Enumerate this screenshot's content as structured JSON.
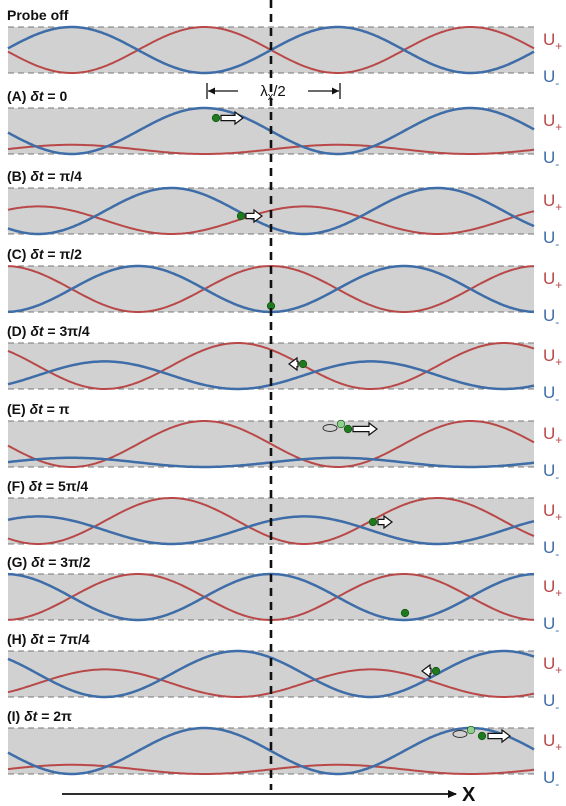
{
  "colors": {
    "u_plus": "#b94848",
    "u_minus": "#3e6da8",
    "band": "#d1d1d1",
    "atom": "#1f7a1f",
    "atom_ghost": "#8fd08f"
  },
  "labels": {
    "u_plus": "U",
    "u_plus_sub": "+",
    "u_minus": "U",
    "u_minus_sub": "-",
    "x_axis": "X",
    "lambda_main": "λ",
    "lambda_sub": "x",
    "lambda_tail": "/2"
  },
  "panels": [
    {
      "id": "probe-off",
      "prefix": "Probe off",
      "dt": "",
      "eq": "",
      "shift": 0,
      "red_amp": 1.0,
      "blue_amp": 1.0
    },
    {
      "id": "A",
      "prefix": "(A) ",
      "dt": "δt",
      "eq": " = 0",
      "shift": 0.5,
      "red_amp": 0.2,
      "blue_amp": 1.0
    },
    {
      "id": "B",
      "prefix": "(B) ",
      "dt": "δt",
      "eq": " = π/4",
      "shift": 0.375,
      "red_amp": 0.6,
      "blue_amp": 1.0
    },
    {
      "id": "C",
      "prefix": "(C) ",
      "dt": "δt",
      "eq": " = π/2",
      "shift": 0.25,
      "red_amp": 1.0,
      "blue_amp": 1.0
    },
    {
      "id": "D",
      "prefix": "(D) ",
      "dt": "δt",
      "eq": " = 3π/4",
      "shift": 0.125,
      "red_amp": 1.0,
      "blue_amp": 0.6
    },
    {
      "id": "E",
      "prefix": "(E) ",
      "dt": "δt",
      "eq": " = π",
      "shift": 0.0,
      "red_amp": 1.0,
      "blue_amp": 0.2
    },
    {
      "id": "F",
      "prefix": "(F) ",
      "dt": "δt",
      "eq": " = 5π/4",
      "shift": -0.125,
      "red_amp": 1.0,
      "blue_amp": 0.6
    },
    {
      "id": "G",
      "prefix": "(G) ",
      "dt": "δt",
      "eq": " = 3π/2",
      "shift": -0.25,
      "red_amp": 1.0,
      "blue_amp": 1.0
    },
    {
      "id": "H",
      "prefix": "(H) ",
      "dt": "δt",
      "eq": " = 7π/4",
      "shift": -0.375,
      "red_amp": 0.6,
      "blue_amp": 1.0
    },
    {
      "id": "I",
      "prefix": "(I) ",
      "dt": "δt",
      "eq": " = 2π",
      "shift": -0.5,
      "red_amp": 0.2,
      "blue_amp": 1.0
    }
  ]
}
